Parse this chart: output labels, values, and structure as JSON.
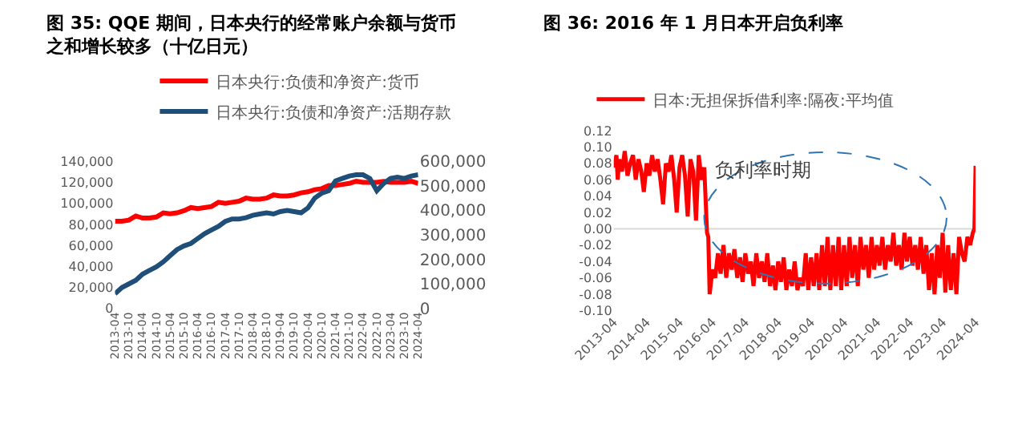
{
  "chart_data": [
    {
      "type": "line",
      "title": "图 35: QQE 期间，日本央行的经常账户余额与货币之和增长较多（十亿日元）",
      "legend": "top",
      "grid": false,
      "marker": "none",
      "line_style": "solid",
      "xlim": [
        "2013-04",
        "2024-04"
      ],
      "xticks": [
        "2013-04",
        "2013-10",
        "2014-04",
        "2014-10",
        "2015-04",
        "2015-10",
        "2016-04",
        "2016-10",
        "2017-04",
        "2017-10",
        "2018-04",
        "2018-10",
        "2019-04",
        "2019-10",
        "2020-04",
        "2020-10",
        "2021-04",
        "2021-10",
        "2022-04",
        "2022-10",
        "2023-04",
        "2023-10",
        "2024-04"
      ],
      "ylim": [
        0,
        140000
      ],
      "yticks": [
        0,
        {
          "value": 20000,
          "label": "20,000"
        },
        {
          "value": 40000,
          "label": "40,000"
        },
        {
          "value": 60000,
          "label": "60,000"
        },
        {
          "value": 80000,
          "label": "80,000"
        },
        {
          "value": 100000,
          "label": "100,000"
        },
        {
          "value": 120000,
          "label": "120,000"
        },
        {
          "value": 140000,
          "label": "140,000"
        }
      ],
      "y2lim": [
        0,
        600000
      ],
      "y2ticks": [
        0,
        {
          "value": 100000,
          "label": "100,000"
        },
        {
          "value": 200000,
          "label": "200,000"
        },
        {
          "value": 300000,
          "label": "300,000"
        },
        {
          "value": 400000,
          "label": "400,000"
        },
        {
          "value": 500000,
          "label": "500,000"
        },
        {
          "value": 600000,
          "label": "600,000"
        }
      ],
      "x": [
        "2013-04",
        "2013-07",
        "2013-10",
        "2014-01",
        "2014-04",
        "2014-07",
        "2014-10",
        "2015-01",
        "2015-04",
        "2015-07",
        "2015-10",
        "2016-01",
        "2016-04",
        "2016-07",
        "2016-10",
        "2017-01",
        "2017-04",
        "2017-07",
        "2017-10",
        "2018-01",
        "2018-04",
        "2018-07",
        "2018-10",
        "2019-01",
        "2019-04",
        "2019-07",
        "2019-10",
        "2020-01",
        "2020-04",
        "2020-07",
        "2020-10",
        "2021-01",
        "2021-04",
        "2021-07",
        "2021-10",
        "2022-01",
        "2022-04",
        "2022-07",
        "2022-10",
        "2023-01",
        "2023-04",
        "2023-07",
        "2023-10",
        "2024-01",
        "2024-04"
      ],
      "series": [
        {
          "name": "日本央行:负债和净资产:货币",
          "color": "#ff0000",
          "values": [
            83000,
            83000,
            84000,
            88000,
            86000,
            86000,
            87000,
            91000,
            90000,
            91000,
            93000,
            96000,
            95000,
            96000,
            97000,
            101000,
            100000,
            101000,
            102000,
            105000,
            104000,
            104000,
            105000,
            108000,
            107000,
            107000,
            108000,
            110000,
            111000,
            113000,
            114000,
            117000,
            117000,
            118000,
            119000,
            121000,
            120000,
            120000,
            120000,
            121000,
            120000,
            120000,
            120000,
            121000,
            119000
          ]
        },
        {
          "name": "日本央行:负债和净资产:活期存款",
          "color": "#1f4e79",
          "axis": "y2",
          "values": [
            60000,
            85000,
            100000,
            115000,
            140000,
            155000,
            170000,
            190000,
            215000,
            240000,
            255000,
            265000,
            285000,
            305000,
            320000,
            335000,
            355000,
            365000,
            365000,
            370000,
            380000,
            385000,
            390000,
            385000,
            395000,
            400000,
            395000,
            390000,
            410000,
            450000,
            470000,
            480000,
            520000,
            530000,
            540000,
            545000,
            545000,
            530000,
            480000,
            510000,
            530000,
            535000,
            530000,
            540000,
            545000
          ]
        }
      ]
    },
    {
      "type": "line",
      "title": "图 36: 2016 年 1 月日本开启负利率",
      "legend": "top",
      "grid": false,
      "marker": "none",
      "line_style": "solid",
      "annotations": [
        "负利率时期"
      ],
      "ref_lines": [
        {
          "axis": "y",
          "value": 0,
          "color": "#d9d9d9"
        }
      ],
      "xlim": [
        "2013-04",
        "2024-04"
      ],
      "xticks": [
        "2013-04",
        "2014-04",
        "2015-04",
        "2016-04",
        "2017-04",
        "2018-04",
        "2019-04",
        "2020-04",
        "2021-04",
        "2022-04",
        "2023-04",
        "2024-04"
      ],
      "ylim": [
        -0.1,
        0.12
      ],
      "yticks": [
        {
          "value": -0.1,
          "label": "-0.10"
        },
        {
          "value": -0.08,
          "label": "-0.08"
        },
        {
          "value": -0.06,
          "label": "-0.06"
        },
        {
          "value": -0.04,
          "label": "-0.04"
        },
        {
          "value": -0.02,
          "label": "-0.02"
        },
        {
          "value": 0,
          "label": "0.00"
        },
        {
          "value": 0.02,
          "label": "0.02"
        },
        {
          "value": 0.04,
          "label": "0.04"
        },
        {
          "value": 0.06,
          "label": "0.06"
        },
        {
          "value": 0.08,
          "label": "0.08"
        },
        {
          "value": 0.1,
          "label": "0.10"
        },
        {
          "value": 0.12,
          "label": "0.12"
        }
      ],
      "x": [
        "2013-04-01",
        "2013-05-01",
        "2013-05-15",
        "2013-06-01",
        "2013-07-01",
        "2013-08-01",
        "2013-09-01",
        "2013-10-01",
        "2013-11-01",
        "2013-12-01",
        "2014-01-01",
        "2014-02-01",
        "2014-03-01",
        "2014-04-01",
        "2014-05-01",
        "2014-06-01",
        "2014-07-01",
        "2014-08-01",
        "2014-09-01",
        "2014-10-01",
        "2014-11-01",
        "2014-12-01",
        "2015-01-01",
        "2015-02-01",
        "2015-03-01",
        "2015-04-01",
        "2015-05-01",
        "2015-06-01",
        "2015-07-01",
        "2015-08-01",
        "2015-09-01",
        "2015-10-01",
        "2015-11-01",
        "2015-12-01",
        "2016-01-01",
        "2016-02-01",
        "2016-02-15",
        "2016-03-01",
        "2016-04-01",
        "2016-05-01",
        "2016-06-01",
        "2016-07-01",
        "2016-08-01",
        "2016-09-01",
        "2016-10-01",
        "2016-11-01",
        "2016-12-01",
        "2017-01-01",
        "2017-02-01",
        "2017-03-01",
        "2017-04-01",
        "2017-05-01",
        "2017-06-01",
        "2017-07-01",
        "2017-08-01",
        "2017-09-01",
        "2017-10-01",
        "2017-11-01",
        "2017-12-01",
        "2018-01-01",
        "2018-02-01",
        "2018-03-01",
        "2018-04-01",
        "2018-05-01",
        "2018-06-01",
        "2018-07-01",
        "2018-08-01",
        "2018-09-01",
        "2018-10-01",
        "2018-11-01",
        "2018-12-01",
        "2019-01-01",
        "2019-02-01",
        "2019-03-01",
        "2019-04-01",
        "2019-05-01",
        "2019-06-01",
        "2019-07-01",
        "2019-08-01",
        "2019-09-01",
        "2019-10-01",
        "2019-11-01",
        "2019-12-01",
        "2020-01-01",
        "2020-02-01",
        "2020-03-01",
        "2020-04-01",
        "2020-05-01",
        "2020-06-01",
        "2020-07-01",
        "2020-08-01",
        "2020-09-01",
        "2020-10-01",
        "2020-11-01",
        "2020-12-01",
        "2021-01-01",
        "2021-02-01",
        "2021-03-01",
        "2021-04-01",
        "2021-05-01",
        "2021-06-01",
        "2021-07-01",
        "2021-08-01",
        "2021-09-01",
        "2021-10-01",
        "2021-11-01",
        "2021-12-01",
        "2022-01-01",
        "2022-02-01",
        "2022-03-01",
        "2022-04-01",
        "2022-05-01",
        "2022-06-01",
        "2022-07-01",
        "2022-08-01",
        "2022-09-01",
        "2022-10-01",
        "2022-11-01",
        "2022-12-01",
        "2023-01-01",
        "2023-02-01",
        "2023-03-01",
        "2023-04-01",
        "2023-05-01",
        "2023-06-01",
        "2023-07-01",
        "2023-08-01",
        "2023-09-01",
        "2023-10-01",
        "2023-11-01",
        "2023-12-01",
        "2024-01-01",
        "2024-02-01",
        "2024-03-01",
        "2024-03-19",
        "2024-04-01"
      ],
      "series": [
        {
          "name": "日本:无担保拆借利率:隔夜:平均值",
          "color": "#ff0000",
          "values": [
            0.075,
            0.09,
            0.06,
            0.085,
            0.07,
            0.095,
            0.065,
            0.08,
            0.09,
            0.06,
            0.085,
            0.07,
            0.045,
            0.08,
            0.065,
            0.09,
            0.07,
            0.085,
            0.06,
            0.03,
            0.08,
            0.07,
            0.09,
            0.06,
            0.02,
            0.075,
            0.09,
            0.065,
            0.015,
            0.085,
            0.07,
            0.01,
            0.09,
            0.06,
            0.075,
            -0.005,
            -0.01,
            -0.08,
            -0.05,
            -0.06,
            -0.03,
            -0.055,
            -0.02,
            -0.06,
            -0.03,
            -0.05,
            -0.025,
            -0.06,
            -0.035,
            -0.065,
            -0.03,
            -0.055,
            -0.04,
            -0.07,
            -0.03,
            -0.06,
            -0.04,
            -0.065,
            -0.03,
            -0.07,
            -0.045,
            -0.075,
            -0.04,
            -0.065,
            -0.035,
            -0.075,
            -0.05,
            -0.07,
            -0.04,
            -0.075,
            -0.06,
            -0.07,
            -0.03,
            -0.075,
            -0.035,
            -0.07,
            -0.03,
            -0.075,
            -0.02,
            -0.07,
            -0.01,
            -0.075,
            -0.02,
            -0.07,
            -0.01,
            -0.075,
            -0.02,
            -0.07,
            -0.01,
            -0.06,
            -0.02,
            -0.07,
            -0.01,
            -0.05,
            -0.02,
            -0.06,
            -0.01,
            -0.05,
            -0.02,
            -0.045,
            -0.01,
            -0.05,
            -0.02,
            -0.04,
            -0.005,
            -0.045,
            -0.02,
            -0.05,
            -0.005,
            -0.04,
            -0.01,
            -0.045,
            -0.02,
            -0.05,
            -0.01,
            -0.055,
            -0.02,
            -0.075,
            -0.03,
            -0.08,
            -0.02,
            -0.06,
            -0.005,
            -0.078,
            -0.02,
            -0.075,
            -0.03,
            -0.08,
            -0.01,
            -0.03,
            -0.04,
            -0.01,
            -0.02,
            -0.005,
            0.0,
            0.077
          ]
        }
      ]
    }
  ]
}
